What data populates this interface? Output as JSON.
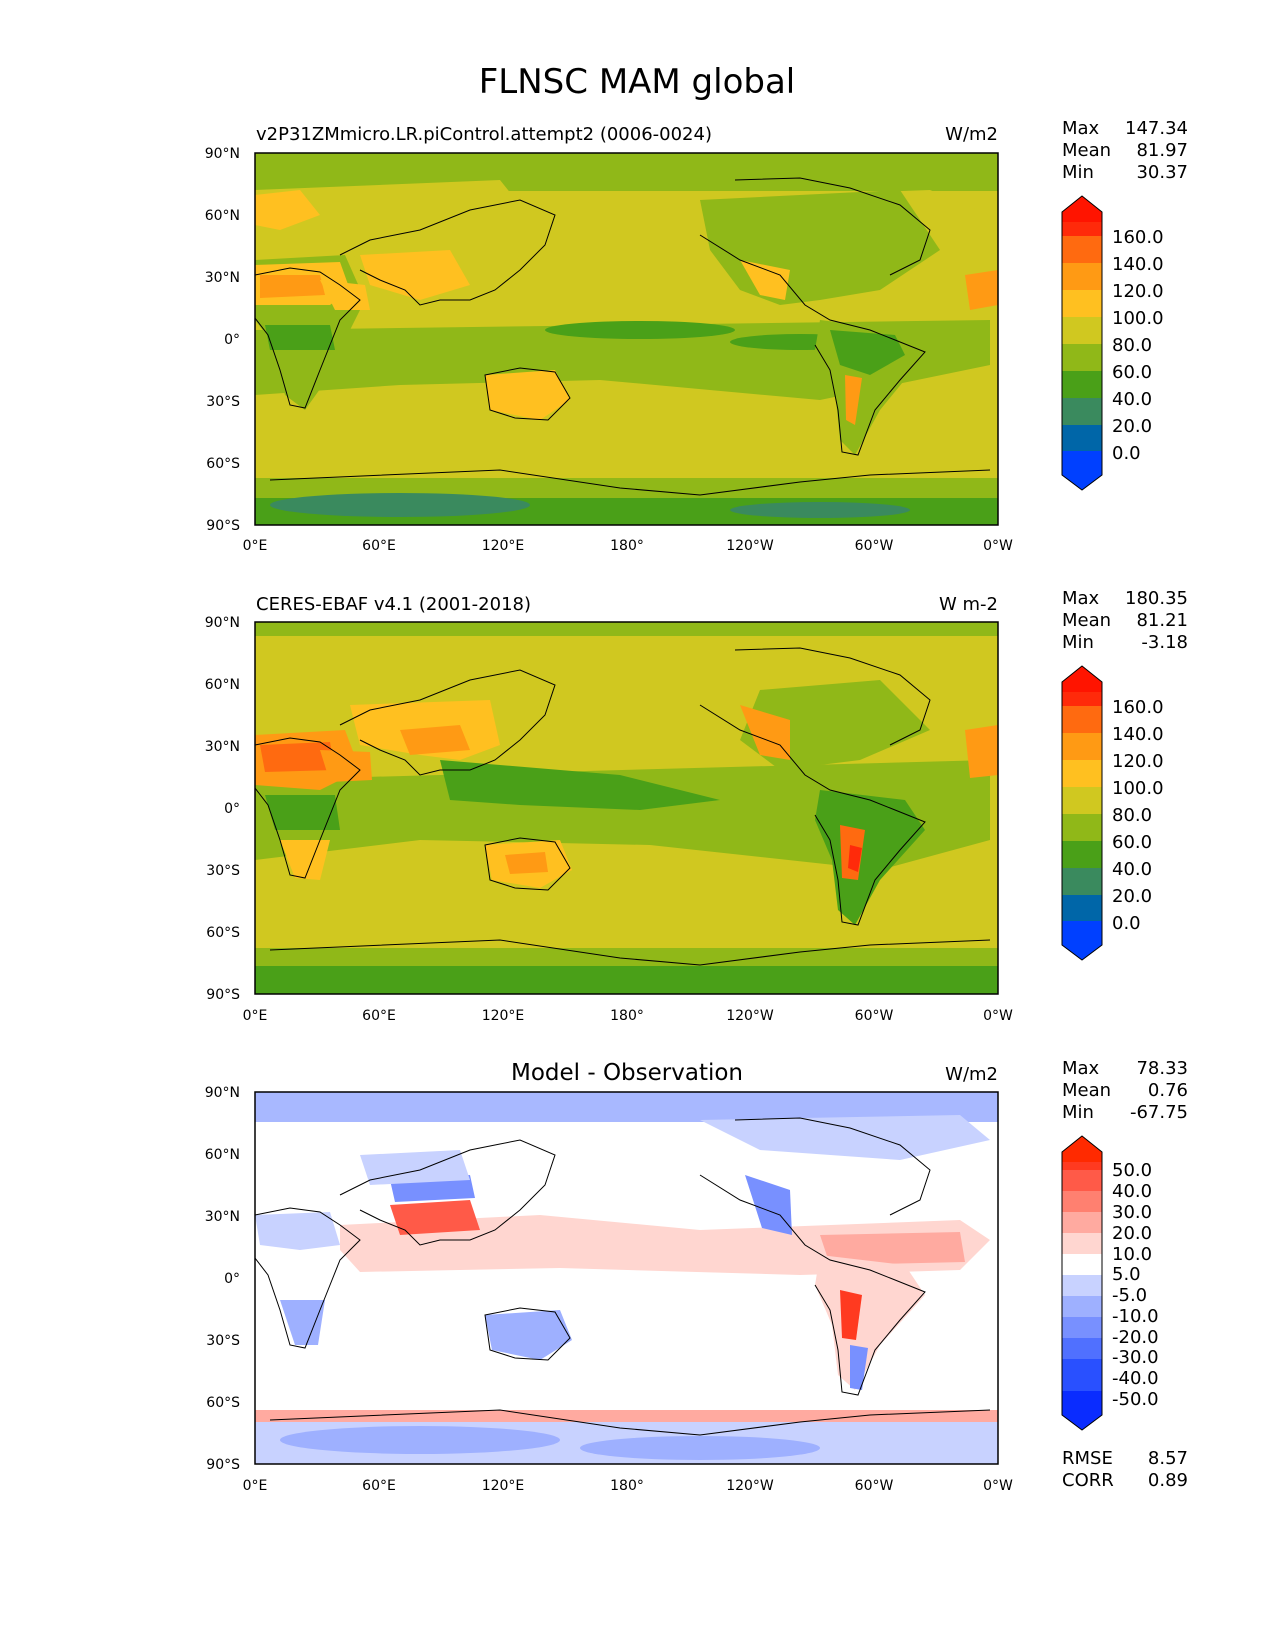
{
  "figure": {
    "title": "FLNSC MAM global"
  },
  "axes": {
    "lat_ticks": [
      "90°N",
      "60°N",
      "30°N",
      "0°",
      "30°S",
      "60°S",
      "90°S"
    ],
    "lon_ticks": [
      "0°E",
      "60°E",
      "120°E",
      "180°",
      "120°W",
      "60°W",
      "0°W"
    ]
  },
  "panels": [
    {
      "left_title": "v2P31ZMmicro.LR.piControl.attempt2 (0006-0024)",
      "center_title": "",
      "units": "W/m2",
      "stats": {
        "max_label": "Max",
        "max": "147.34",
        "mean_label": "Mean",
        "mean": "81.97",
        "min_label": "Min",
        "min": "30.37"
      },
      "colorbar": {
        "labels": [
          "160.0",
          "140.0",
          "120.0",
          "100.0",
          "80.0",
          "60.0",
          "40.0",
          "20.0",
          "0.0"
        ],
        "colors": [
          "#0040ff",
          "#0066a8",
          "#3a8a5e",
          "#4aa018",
          "#90b818",
          "#d0c820",
          "#ffc020",
          "#ff9a14",
          "#ff6a10",
          "#ff2a0a",
          "#ff1400"
        ]
      },
      "extra": []
    },
    {
      "left_title": "CERES-EBAF v4.1 (2001-2018)",
      "center_title": "",
      "units": "W m-2",
      "stats": {
        "max_label": "Max",
        "max": "180.35",
        "mean_label": "Mean",
        "mean": "81.21",
        "min_label": "Min",
        "min": "-3.18"
      },
      "colorbar": {
        "labels": [
          "160.0",
          "140.0",
          "120.0",
          "100.0",
          "80.0",
          "60.0",
          "40.0",
          "20.0",
          "0.0"
        ],
        "colors": [
          "#0040ff",
          "#0066a8",
          "#3a8a5e",
          "#4aa018",
          "#90b818",
          "#d0c820",
          "#ffc020",
          "#ff9a14",
          "#ff6a10",
          "#ff2a0a",
          "#ff1400"
        ]
      },
      "extra": []
    },
    {
      "left_title": "",
      "center_title": "Model - Observation",
      "units": "W/m2",
      "stats": {
        "max_label": "Max",
        "max": "78.33",
        "mean_label": "Mean",
        "mean": "0.76",
        "min_label": "Min",
        "min": "-67.75"
      },
      "colorbar": {
        "labels": [
          "50.0",
          "40.0",
          "30.0",
          "20.0",
          "10.0",
          "5.0",
          "-5.0",
          "-10.0",
          "-20.0",
          "-30.0",
          "-40.0",
          "-50.0"
        ],
        "colors": [
          "#0a2cff",
          "#2950ff",
          "#5070ff",
          "#7890ff",
          "#9eb0ff",
          "#c8d2ff",
          "#ffffff",
          "#ffd6d0",
          "#ffaaa0",
          "#ff8070",
          "#ff5a48",
          "#ff3a20",
          "#ff2a00"
        ]
      },
      "extra": [
        {
          "label": "RMSE",
          "value": "8.57"
        },
        {
          "label": "CORR",
          "value": "0.89"
        }
      ]
    }
  ]
}
